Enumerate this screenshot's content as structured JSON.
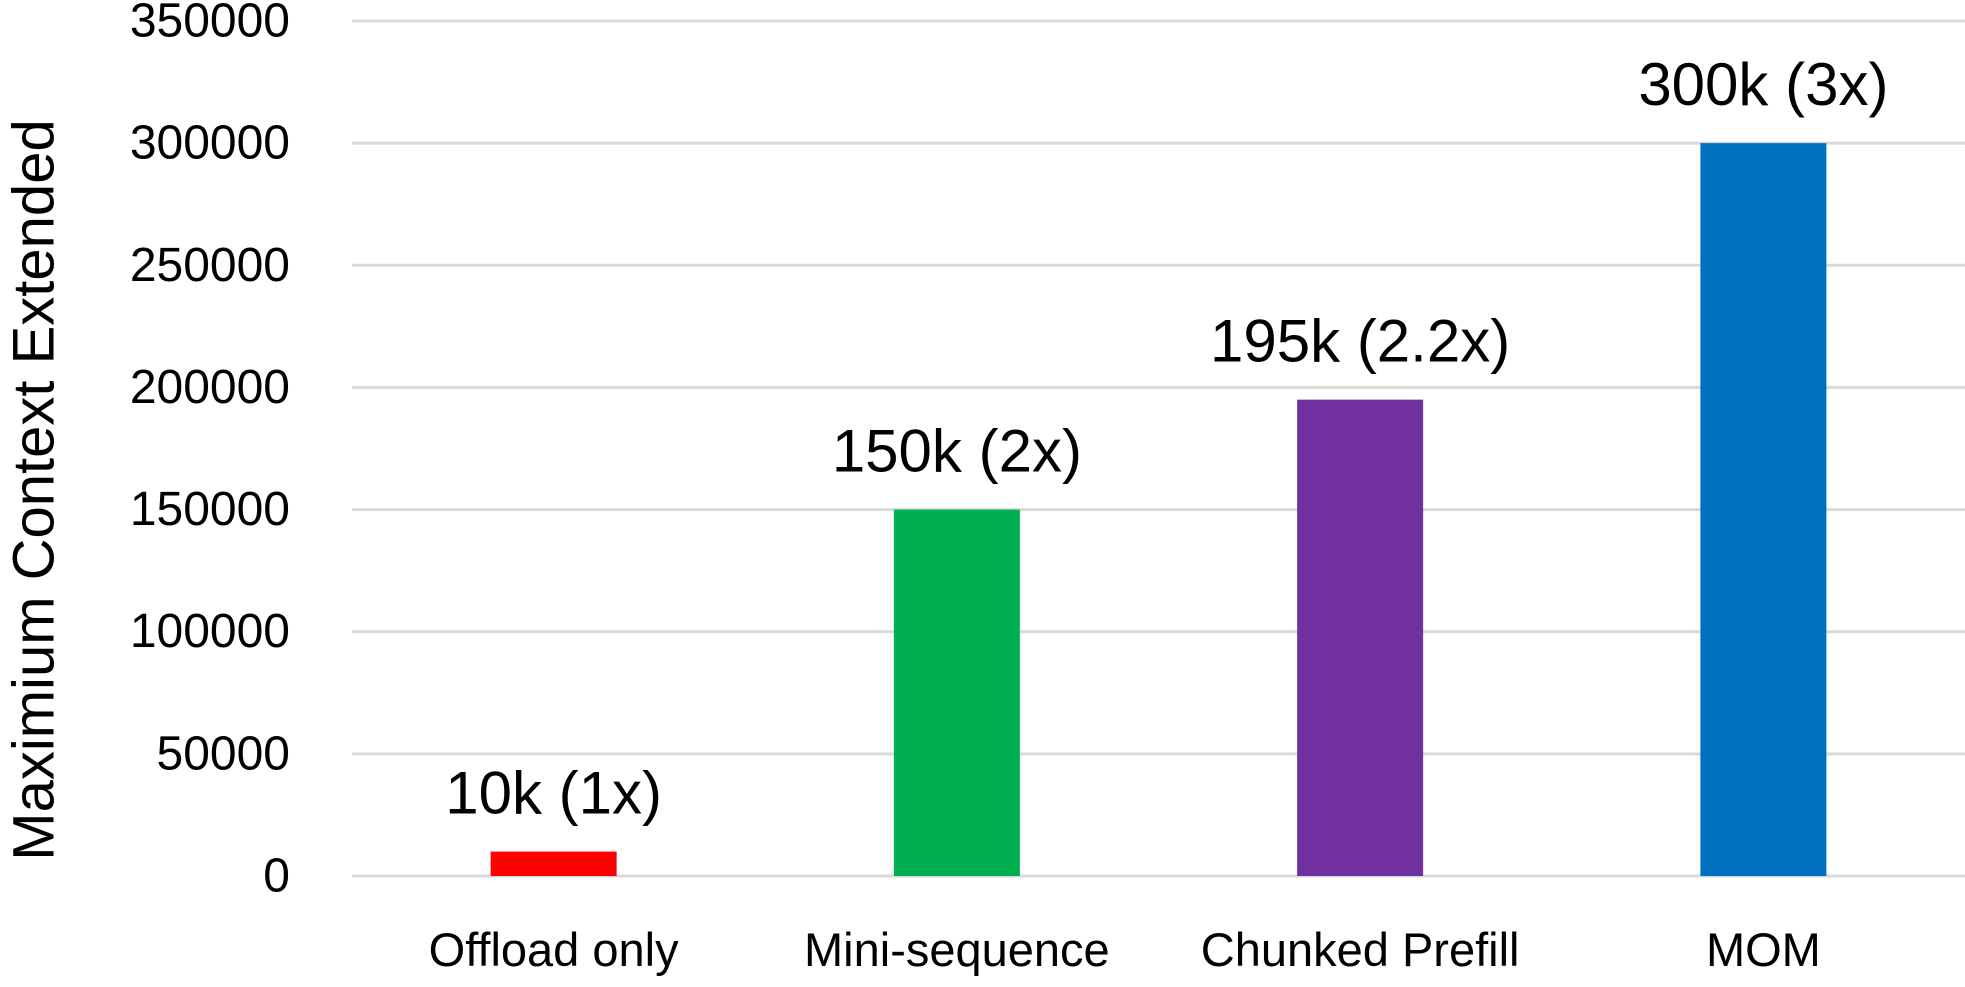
{
  "chart_data": {
    "type": "bar",
    "title": "",
    "xlabel": "",
    "ylabel": "Maximium Context Extended",
    "categories": [
      "Offload only",
      "Mini-sequence",
      "Chunked Prefill",
      "MOM"
    ],
    "values": [
      10000,
      150000,
      195000,
      300000
    ],
    "data_labels": [
      "10k (1x)",
      "150k (2x)",
      "195k (2.2x)",
      "300k (3x)"
    ],
    "bar_colors": [
      "#FF0000",
      "#00B050",
      "#7030A0",
      "#0070C0"
    ],
    "ylim": [
      0,
      350000
    ],
    "yticks": [
      0,
      50000,
      100000,
      150000,
      200000,
      250000,
      300000,
      350000
    ],
    "ytick_labels": [
      "0",
      "50000",
      "100000",
      "150000",
      "200000",
      "250000",
      "300000",
      "350000"
    ],
    "grid": true,
    "gridline_color": "#D9D9D9",
    "legend": "none"
  }
}
